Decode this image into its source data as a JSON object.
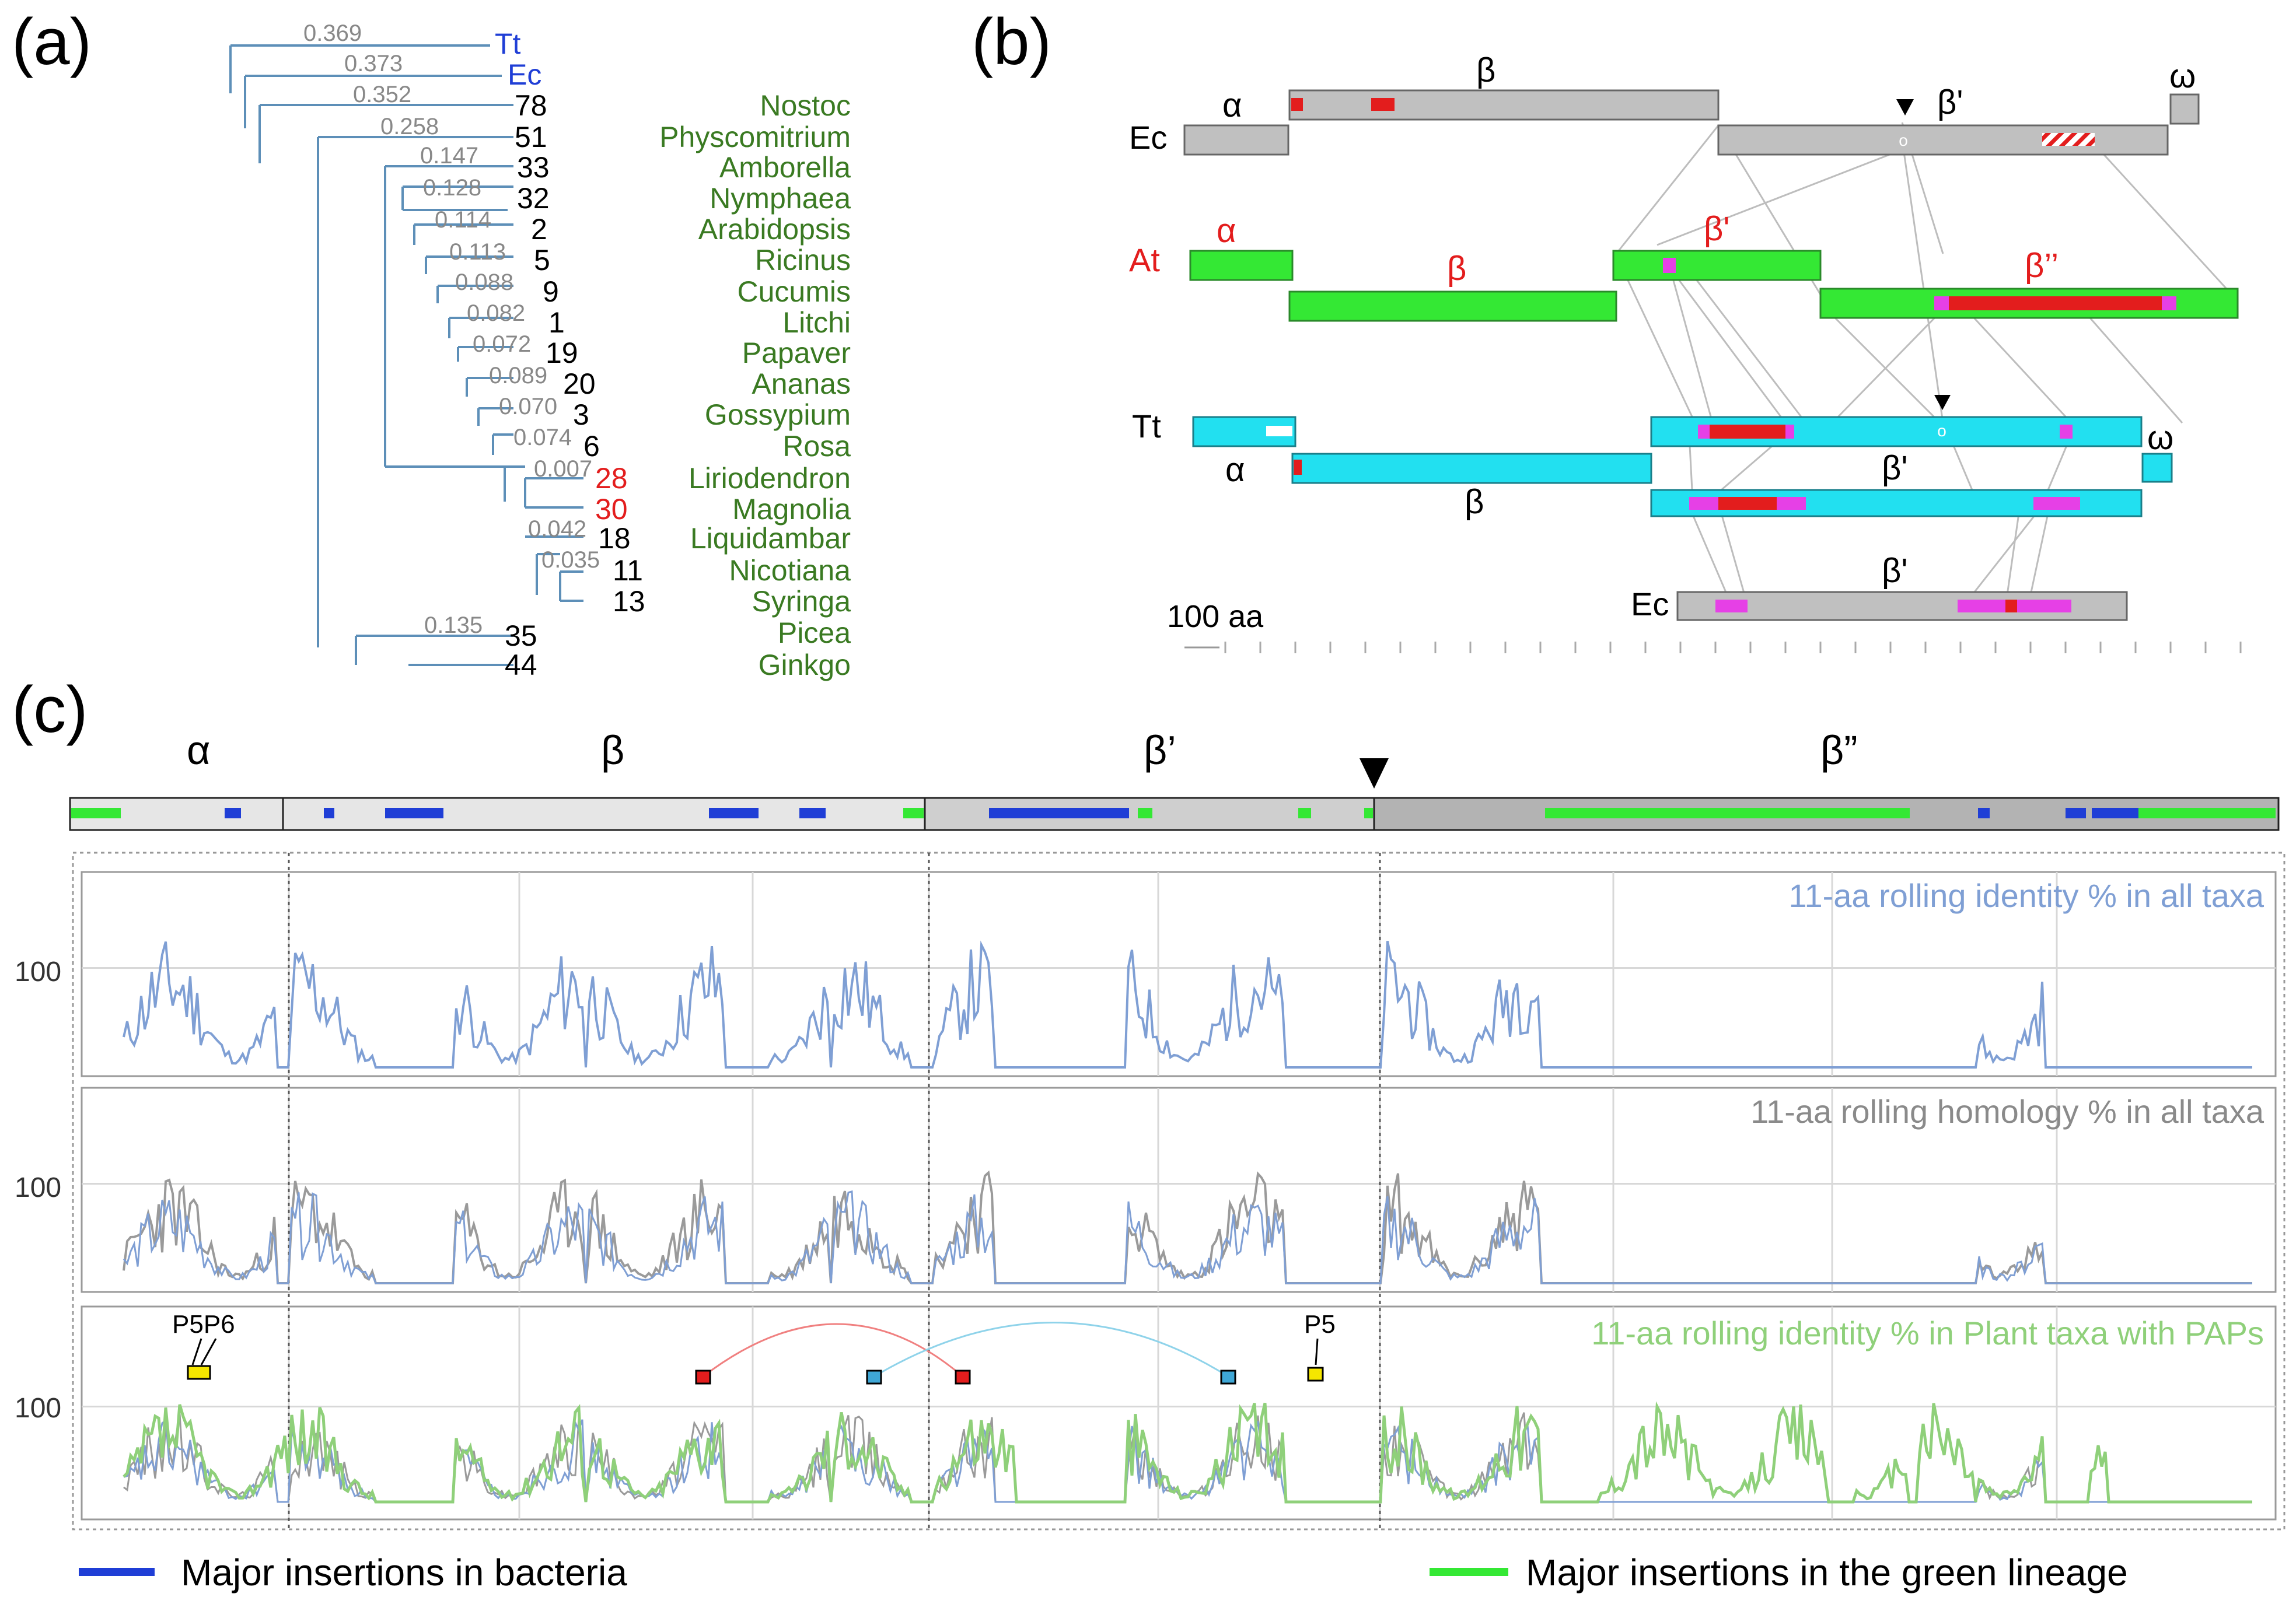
{
  "figure": {
    "panel_labels": {
      "a": "(a)",
      "b": "(b)",
      "c": "(c)"
    },
    "colors": {
      "tree_branch": "#5d8fb8",
      "bacteria_blue": "#1f3ed6",
      "plant_green": "#4caf2a",
      "red": "#e31d1d",
      "cyan": "#22e0f0",
      "magenta": "#e640e6",
      "grey_bar": "#c0c0c0",
      "green_bar": "#34e834",
      "identity_line": "#7f9fd4",
      "homology_line": "#9a9a9a",
      "plant_line": "#8fd07a",
      "yellow_marker": "#f5e600"
    }
  },
  "panel_a": {
    "branch_lengths": [
      "0.369",
      "0.373",
      "0.352",
      "0.258",
      "0.147",
      "0.128",
      "0.114",
      "0.113",
      "0.088",
      "0.082",
      "0.072",
      "0.089",
      "0.070",
      "0.074",
      "0.007",
      "0.042",
      "0.035",
      "0.135"
    ],
    "tips": [
      "Tt",
      "Ec",
      "78",
      "51",
      "33",
      "32",
      "2",
      "5",
      "9",
      "1",
      "19",
      "20",
      "3",
      "6",
      "28",
      "30",
      "18",
      "11",
      "13",
      "35",
      "44"
    ],
    "species": [
      "Nostoc",
      "Physcomitrium",
      "Amborella",
      "Nymphaea",
      "Arabidopsis",
      "Ricinus",
      "Cucumis",
      "Litchi",
      "Papaver",
      "Ananas",
      "Gossypium",
      "Rosa",
      "Liriodendron",
      "Magnolia",
      "Liquidambar",
      "Nicotiana",
      "Syringa",
      "Picea",
      "Ginkgo"
    ]
  },
  "panel_b": {
    "organisms": {
      "ec": "Ec",
      "at": "At",
      "tt": "Tt",
      "ec2": "Ec"
    },
    "subunits": {
      "ec_alpha": "α",
      "ec_beta": "β",
      "ec_betap": "β'",
      "ec_omega": "ω",
      "at_alpha": "α",
      "at_beta": "β",
      "at_betap": "β'",
      "at_betapp": "β’’",
      "tt_alpha": "α",
      "tt_beta": "β",
      "tt_betap": "β'",
      "tt_omega": "ω",
      "ec2_betap": "β'"
    },
    "scale_label": "100 aa"
  },
  "panel_c": {
    "segments": {
      "alpha": "α",
      "beta": "β",
      "betap": "β’",
      "betapp": "β”"
    },
    "y_ticks": [
      "100",
      "100",
      "100"
    ],
    "track_titles": {
      "t1": "11-aa rolling identity % in all taxa",
      "t2": "11-aa rolling homology % in all taxa",
      "t3": "11-aa rolling identity % in Plant taxa with PAPs"
    },
    "markers": {
      "p5p6": "P5P6",
      "p5": "P5"
    },
    "legend": {
      "bacteria": "Major insertions in bacteria",
      "green": "Major insertions in the green lineage"
    },
    "series_seeds": {
      "identity_all": 11,
      "homology_all": 23,
      "identity_plant": 37
    }
  }
}
